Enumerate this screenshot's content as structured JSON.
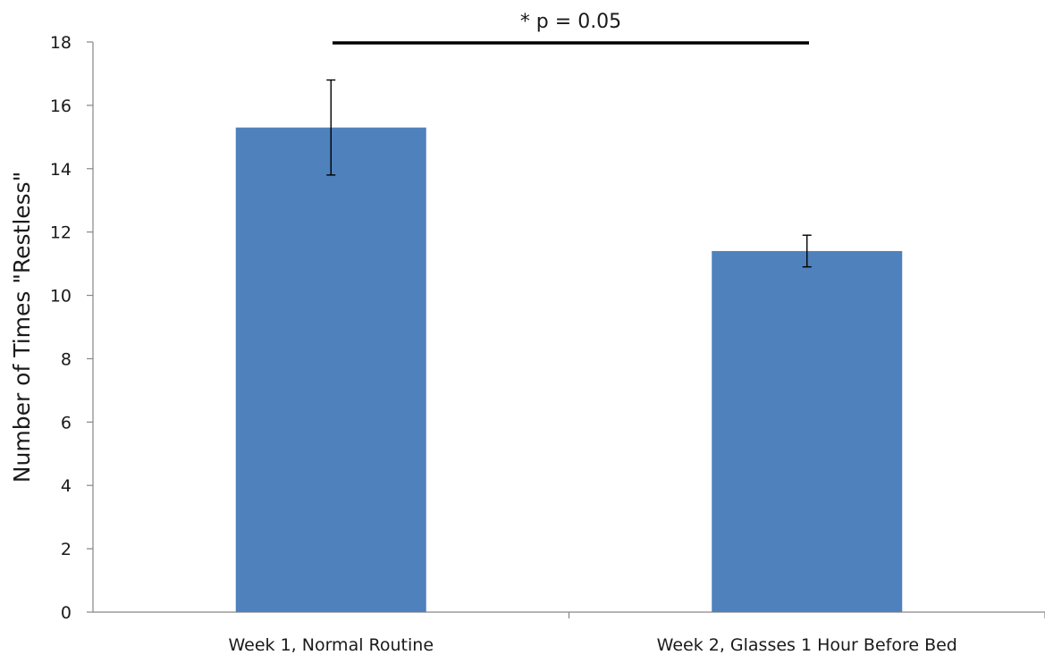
{
  "chart_data": {
    "type": "bar",
    "categories": [
      "Week 1, Normal Routine",
      "Week 2, Glasses 1 Hour Before Bed"
    ],
    "values": [
      15.3,
      11.4
    ],
    "error_bars": [
      1.5,
      0.5
    ],
    "ylabel": "Number of Times \"Restless\"",
    "xlabel": "",
    "ylim": [
      0,
      18
    ],
    "yticks": [
      0,
      2,
      4,
      6,
      8,
      10,
      12,
      14,
      16,
      18
    ],
    "grid": false,
    "legend": "none",
    "bar_color": "#4f81bd",
    "annotation": {
      "text": "* p = 0.05",
      "type": "significance-bracket",
      "between": [
        "Week 1, Normal Routine",
        "Week 2, Glasses 1 Hour Before Bed"
      ]
    }
  }
}
